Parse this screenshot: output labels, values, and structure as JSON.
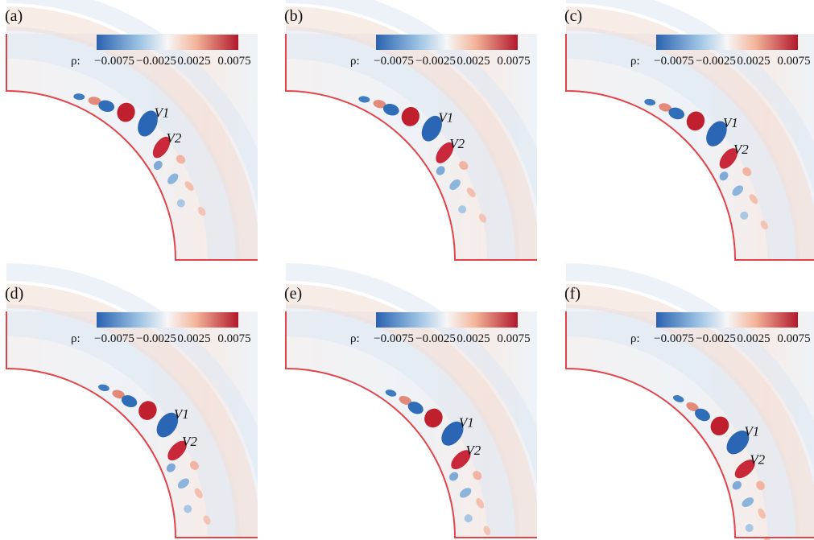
{
  "panels": [
    {
      "label": "(a)",
      "colorbar": {
        "symbol": "ρ:",
        "ticks": [
          "−0.0075",
          "−0.0025",
          "0.0025",
          "0.0075"
        ]
      },
      "annotations": [
        "V1",
        "V2"
      ]
    },
    {
      "label": "(b)",
      "colorbar": {
        "symbol": "ρ:",
        "ticks": [
          "−0.0075",
          "−0.0025",
          "0.0025",
          "0.0075"
        ]
      },
      "annotations": [
        "V1",
        "V2"
      ]
    },
    {
      "label": "(c)",
      "colorbar": {
        "symbol": "ρ:",
        "ticks": [
          "−0.0075",
          "−0.0025",
          "0.0025",
          "0.0075"
        ]
      },
      "annotations": [
        "V1",
        "V2"
      ]
    },
    {
      "label": "(d)",
      "colorbar": {
        "symbol": "ρ:",
        "ticks": [
          "−0.0075",
          "−0.0025",
          "0.0025",
          "0.0075"
        ]
      },
      "annotations": [
        "V1",
        "V2"
      ]
    },
    {
      "label": "(e)",
      "colorbar": {
        "symbol": "ρ:",
        "ticks": [
          "−0.0075",
          "−0.0025",
          "0.0025",
          "0.0075"
        ]
      },
      "annotations": [
        "V1",
        "V2"
      ]
    },
    {
      "label": "(f)",
      "colorbar": {
        "symbol": "ρ:",
        "ticks": [
          "−0.0075",
          "−0.0025",
          "0.0025",
          "0.0075"
        ]
      },
      "annotations": [
        "V1",
        "V2"
      ]
    }
  ]
}
